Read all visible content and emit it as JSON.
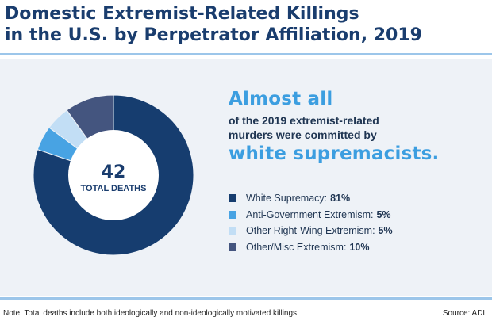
{
  "title": {
    "line1": "Domestic Extremist-Related Killings",
    "line2": "in the U.S. by Perpetrator Affiliation, 2019"
  },
  "callout": {
    "headline1": "Almost all",
    "body_line1": "of the 2019 extremist-related",
    "body_line2": "murders were committed by",
    "headline2": "white supremacists."
  },
  "center": {
    "value": "42",
    "label": "TOTAL DEATHS"
  },
  "note": "Note: Total deaths include both ideologically and non-ideologically motivated killings.",
  "source": "Source: ADL",
  "chart_data": {
    "type": "pie",
    "categories": [
      "White Supremacy",
      "Anti-Government Extremism",
      "Other Right-Wing Extremism",
      "Other/Misc Extremism"
    ],
    "values": [
      81,
      5,
      5,
      10
    ],
    "value_labels": [
      "81%",
      "5%",
      "5%",
      "10%"
    ],
    "colors": [
      "#163d6f",
      "#48a3e3",
      "#c2def5",
      "#44557f"
    ],
    "legend": "right",
    "donut": true
  }
}
